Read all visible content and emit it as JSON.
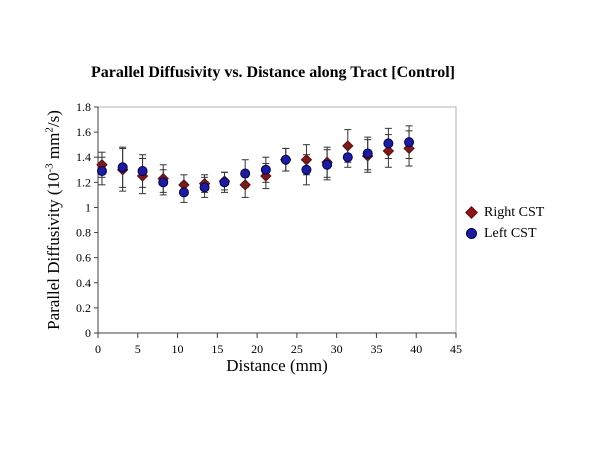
{
  "page": {
    "background": "#ffffff"
  },
  "title": "Parallel Diffusivity vs. Distance along Tract [Control]",
  "y_axis_label_parts": {
    "pre": "Parallel Diffusivity (10",
    "exp1": "-3",
    "mid": " mm",
    "exp2": "2",
    "post": "/s)"
  },
  "chart_data": {
    "type": "scatter",
    "title": "Parallel Diffusivity vs. Distance along Tract [Control]",
    "xlabel": "Distance (mm)",
    "ylabel": "Parallel Diffusivity (10^-3 mm^2/s)",
    "xlim": [
      0,
      45
    ],
    "ylim": [
      0,
      1.8
    ],
    "x_tick_step": 5,
    "y_tick_step": 0.2,
    "grid": false,
    "error_bars": true,
    "legend_position": "right-outside",
    "axis_color": "#404040",
    "frame_color": "#b3b3b3",
    "error_bar_color": "#333333",
    "x": [
      0.5,
      3.1,
      5.6,
      8.2,
      10.8,
      13.4,
      15.9,
      18.5,
      21.1,
      23.6,
      26.2,
      28.8,
      31.4,
      33.9,
      36.5,
      39.1
    ],
    "series": [
      {
        "name": "Right CST",
        "marker": "diamond",
        "color": "#8e1515",
        "edge_color": "#5a0c0c",
        "values": [
          1.34,
          1.3,
          1.25,
          1.23,
          1.18,
          1.19,
          1.21,
          1.18,
          1.25,
          1.38,
          1.38,
          1.36,
          1.49,
          1.41,
          1.45,
          1.47
        ],
        "errors": [
          0.1,
          0.17,
          0.14,
          0.11,
          0.08,
          0.07,
          0.07,
          0.1,
          0.1,
          0.09,
          0.12,
          0.12,
          0.13,
          0.13,
          0.13,
          0.14
        ]
      },
      {
        "name": "Left CST",
        "marker": "circle",
        "color": "#1c1c9c",
        "edge_color": "#00004d",
        "values": [
          1.29,
          1.32,
          1.29,
          1.2,
          1.12,
          1.16,
          1.2,
          1.27,
          1.3,
          1.38,
          1.3,
          1.34,
          1.4,
          1.43,
          1.51,
          1.52
        ],
        "errors": [
          0.11,
          0.16,
          0.13,
          0.1,
          0.08,
          0.08,
          0.08,
          0.11,
          0.1,
          0.09,
          0.12,
          0.12,
          0.08,
          0.13,
          0.12,
          0.13
        ]
      }
    ]
  }
}
